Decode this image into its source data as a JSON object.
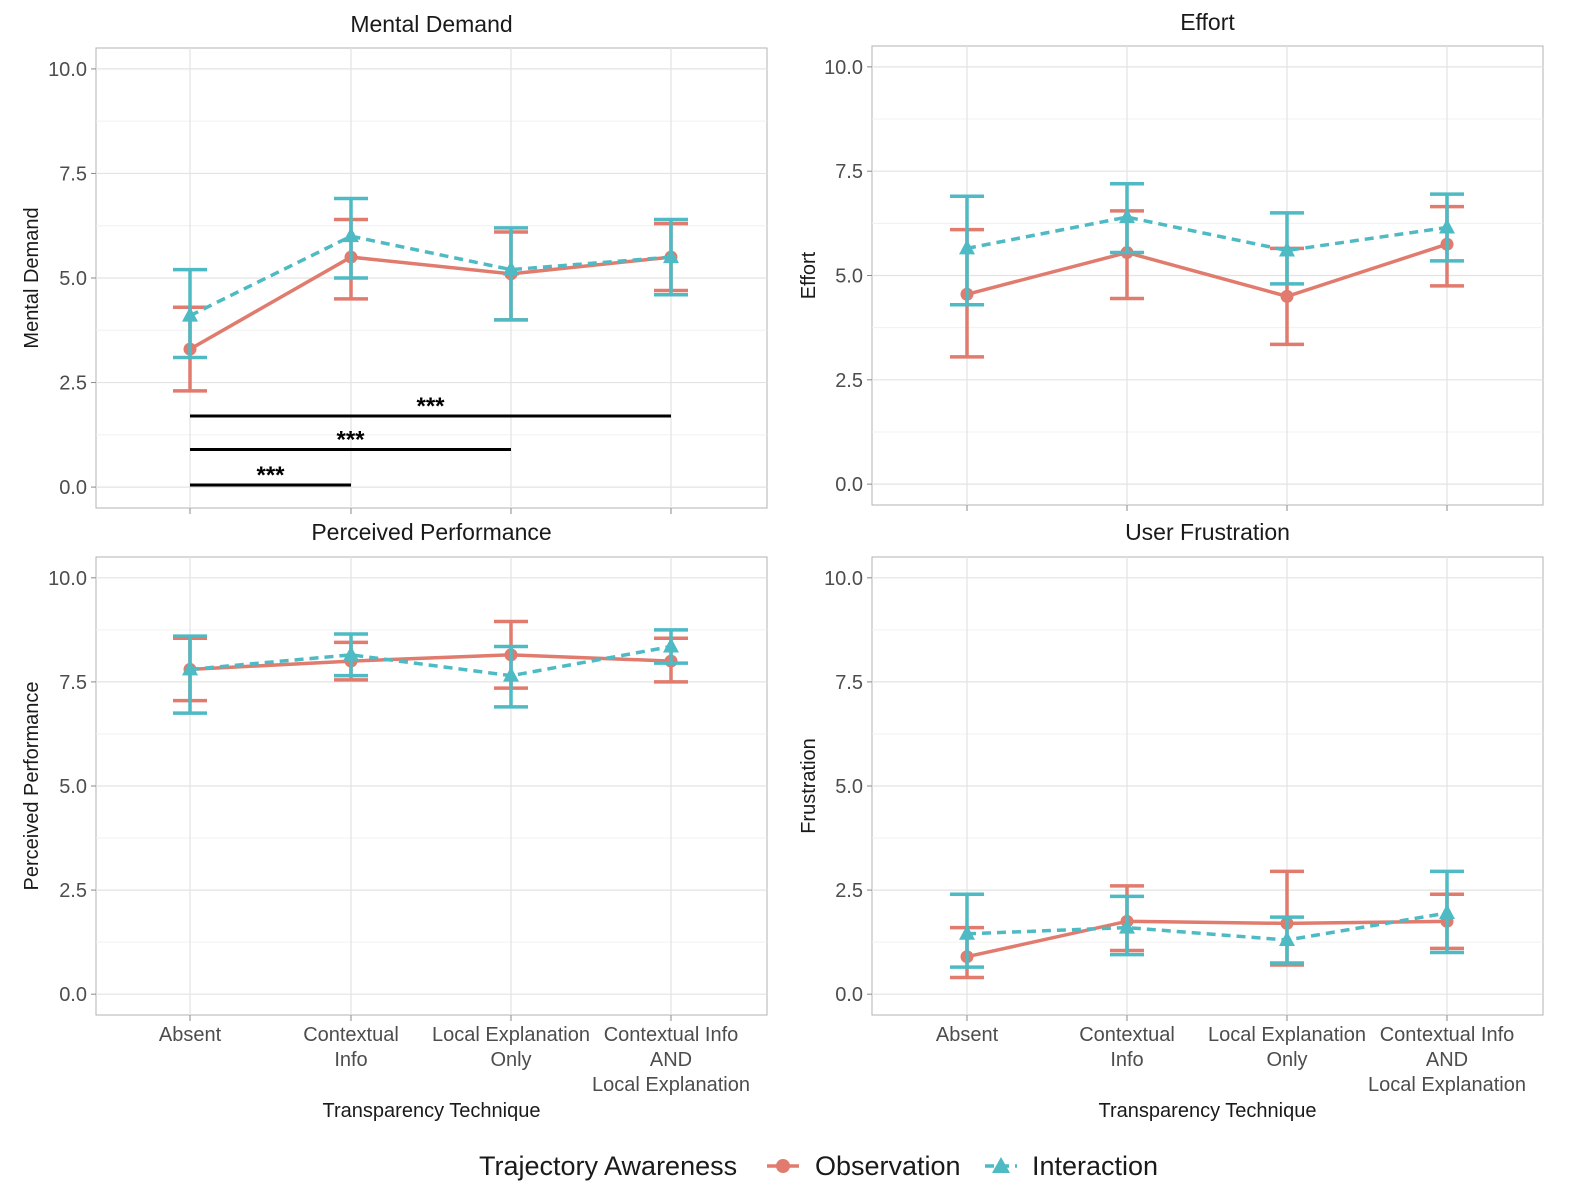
{
  "figure": {
    "x_tick_labels": [
      [
        "Absent"
      ],
      [
        "Contextual",
        "Info"
      ],
      [
        "Local Explanation",
        "Only"
      ],
      [
        "Contextual Info",
        "AND",
        "Local Explanation"
      ]
    ],
    "x_axis_title": "Transparency Technique",
    "y_ticks": [
      "0.0",
      "2.5",
      "5.0",
      "7.5",
      "10.0"
    ],
    "legend": {
      "title": "Trajectory Awareness",
      "items": [
        {
          "label": "Observation",
          "color": "#E07B6E",
          "marker": "circle",
          "line": "solid"
        },
        {
          "label": "Interaction",
          "color": "#4EBAC4",
          "marker": "triangle",
          "line": "dashed"
        }
      ]
    }
  },
  "chart_data": [
    {
      "type": "line",
      "title": "Mental Demand",
      "ylabel": "Mental Demand",
      "xlabel": "",
      "ylim": [
        -0.5,
        10.5
      ],
      "categories": [
        "Absent",
        "Contextual Info",
        "Local Explanation Only",
        "Contextual Info AND Local Explanation"
      ],
      "series": [
        {
          "name": "Observation",
          "values": [
            3.3,
            5.5,
            5.1,
            5.5
          ],
          "lower": [
            2.3,
            4.5,
            4.0,
            4.7
          ],
          "upper": [
            4.3,
            6.4,
            6.1,
            6.3
          ]
        },
        {
          "name": "Interaction",
          "values": [
            4.1,
            6.0,
            5.2,
            5.5
          ],
          "lower": [
            3.1,
            5.0,
            4.0,
            4.6
          ],
          "upper": [
            5.2,
            6.9,
            6.2,
            6.4
          ]
        }
      ],
      "annotations": [
        {
          "label": "***",
          "from": "Absent",
          "to": "Contextual Info AND Local Explanation",
          "y": 1.7
        },
        {
          "label": "***",
          "from": "Absent",
          "to": "Local Explanation Only",
          "y": 0.9
        },
        {
          "label": "***",
          "from": "Absent",
          "to": "Contextual Info",
          "y": 0.05
        }
      ]
    },
    {
      "type": "line",
      "title": "Effort",
      "ylabel": "Effort",
      "xlabel": "",
      "ylim": [
        -0.5,
        10.5
      ],
      "categories": [
        "Absent",
        "Contextual Info",
        "Local Explanation Only",
        "Contextual Info AND Local Explanation"
      ],
      "series": [
        {
          "name": "Observation",
          "values": [
            4.55,
            5.55,
            4.5,
            5.75
          ],
          "lower": [
            3.05,
            4.45,
            3.35,
            4.75
          ],
          "upper": [
            6.1,
            6.55,
            5.65,
            6.65
          ]
        },
        {
          "name": "Interaction",
          "values": [
            5.65,
            6.4,
            5.6,
            6.15
          ],
          "lower": [
            4.3,
            5.55,
            4.8,
            5.35
          ],
          "upper": [
            6.9,
            7.2,
            6.5,
            6.95
          ]
        }
      ],
      "annotations": []
    },
    {
      "type": "line",
      "title": "Perceived Performance",
      "ylabel": "Perceived Performance",
      "xlabel": "Transparency Technique",
      "ylim": [
        -0.5,
        10.5
      ],
      "categories": [
        "Absent",
        "Contextual Info",
        "Local Explanation Only",
        "Contextual Info AND Local Explanation"
      ],
      "series": [
        {
          "name": "Observation",
          "values": [
            7.8,
            8.0,
            8.15,
            8.0
          ],
          "lower": [
            7.05,
            7.55,
            7.35,
            7.5
          ],
          "upper": [
            8.55,
            8.45,
            8.95,
            8.55
          ]
        },
        {
          "name": "Interaction",
          "values": [
            7.8,
            8.15,
            7.65,
            8.35
          ],
          "lower": [
            6.75,
            7.65,
            6.9,
            7.95
          ],
          "upper": [
            8.6,
            8.65,
            8.35,
            8.75
          ]
        }
      ],
      "annotations": []
    },
    {
      "type": "line",
      "title": "User Frustration",
      "ylabel": "Frustration",
      "xlabel": "Transparency Technique",
      "ylim": [
        -0.5,
        10.5
      ],
      "categories": [
        "Absent",
        "Contextual Info",
        "Local Explanation Only",
        "Contextual Info AND Local Explanation"
      ],
      "series": [
        {
          "name": "Observation",
          "values": [
            0.9,
            1.75,
            1.7,
            1.75
          ],
          "lower": [
            0.4,
            1.05,
            0.7,
            1.1
          ],
          "upper": [
            1.6,
            2.6,
            2.95,
            2.4
          ]
        },
        {
          "name": "Interaction",
          "values": [
            1.45,
            1.6,
            1.3,
            1.95
          ],
          "lower": [
            0.65,
            0.95,
            0.75,
            1.0
          ],
          "upper": [
            2.4,
            2.35,
            1.85,
            2.95
          ]
        }
      ],
      "annotations": []
    }
  ]
}
